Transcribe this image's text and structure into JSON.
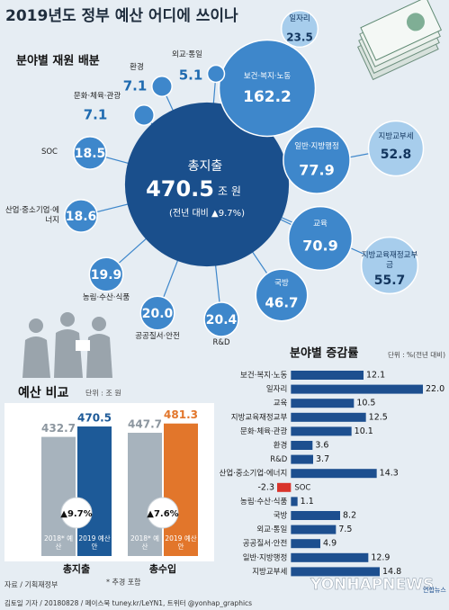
{
  "header": {
    "title": "2019년도 정부 예산 어디에 쓰이나"
  },
  "chart_data": [
    {
      "type": "bubble",
      "title": "분야별 재원 배분",
      "center": {
        "label": "총지출",
        "value": 470.5,
        "unit": "조 원",
        "note": "(전년 대비 ▲9.7%)",
        "color": "#1a4f8c"
      },
      "categories": [
        "보건·복지·노동",
        "일자리",
        "외교·통일",
        "환경",
        "문화·체육·관광",
        "SOC",
        "산업·중소기업·에너지",
        "농림·수산·식품",
        "공공질서·안전",
        "R&D",
        "국방",
        "교육",
        "일반·지방행정",
        "지방교부세",
        "지방교육재정교부금"
      ],
      "values": [
        162.2,
        23.5,
        5.1,
        7.1,
        7.1,
        18.5,
        18.6,
        19.9,
        20.0,
        20.4,
        46.7,
        70.9,
        77.9,
        52.8,
        55.7
      ],
      "value_labels": [
        "162.2",
        "23.5",
        "5.1",
        "7.1",
        "7.1",
        "18.5",
        "18.6",
        "19.9",
        "20.0",
        "20.4",
        "46.7",
        "70.9",
        "77.9",
        "52.8",
        "55.7"
      ],
      "colors": [
        "#3e87cb",
        "#a7cdec",
        "#3e87cb",
        "#3e87cb",
        "#3e87cb",
        "#3e87cb",
        "#3e87cb",
        "#3e87cb",
        "#3e87cb",
        "#3e87cb",
        "#3e87cb",
        "#3e87cb",
        "#3e87cb",
        "#a7cdec",
        "#a7cdec"
      ]
    },
    {
      "type": "bar",
      "title": "예산 비교",
      "unit": "단위 : 조 원",
      "categories": [
        "총지출",
        "총수입"
      ],
      "series": [
        {
          "name": "2018* 예산",
          "color": "#a7b3bd",
          "values": [
            432.7,
            447.7
          ]
        },
        {
          "name": "2019 예산안",
          "colors": [
            "#1d5a98",
            "#e2762b"
          ],
          "values": [
            470.5,
            481.3
          ]
        }
      ],
      "value_labels": [
        [
          "432.7",
          "447.7"
        ],
        [
          "470.5",
          "481.3"
        ]
      ],
      "annotations": [
        "▲9.7%",
        "▲7.6%"
      ],
      "ylim": [
        0,
        500
      ],
      "footnote": "* 추경 포함"
    },
    {
      "type": "hbar",
      "title": "분야별 증감률",
      "unit": "단위 : %(전년 대비)",
      "categories": [
        "보건·복지·노동",
        "일자리",
        "교육",
        "지방교육재정교부",
        "문화·체육·관광",
        "환경",
        "R&D",
        "산업·중소기업·에너지",
        "SOC",
        "농림·수산·식품",
        "국방",
        "외교·통일",
        "공공질서·안전",
        "일반·지방행정",
        "지방교부세"
      ],
      "values": [
        12.1,
        22.0,
        10.5,
        12.5,
        10.1,
        3.6,
        3.7,
        14.3,
        -2.3,
        1.1,
        8.2,
        7.5,
        4.9,
        12.9,
        14.8
      ],
      "value_labels": [
        "12.1",
        "22.0",
        "10.5",
        "12.5",
        "10.1",
        "3.6",
        "3.7",
        "14.3",
        "-2.3",
        "1.1",
        "8.2",
        "7.5",
        "4.9",
        "12.9",
        "14.8"
      ],
      "color": "#1d4f8f",
      "negative_color": "#d9342b",
      "xlim": [
        -5,
        22
      ]
    }
  ],
  "footer": {
    "source": "자료 / 기획재정부",
    "credit": "김토일 기자 / 20180828 / 페이스북 tuney.kr/LeYN1, 트위터 @yonhap_graphics",
    "watermark": "YONHAPNEWS",
    "logo": "연합뉴스"
  }
}
